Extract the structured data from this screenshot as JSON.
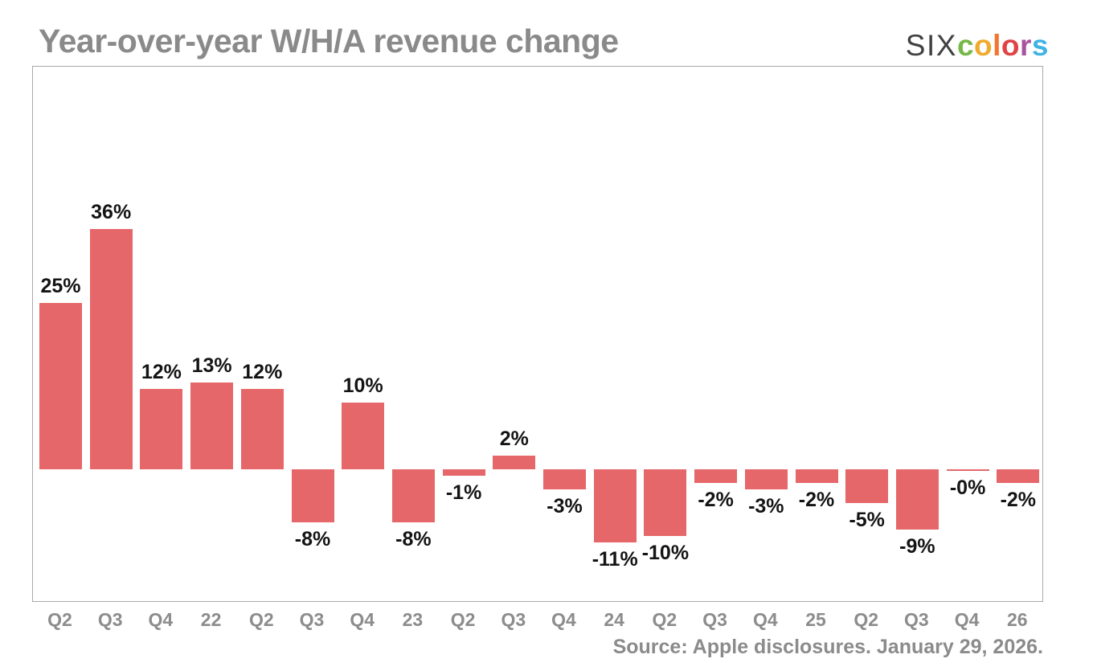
{
  "header": {
    "title": "Year-over-year W/H/A revenue change",
    "logo": {
      "prefix": "SIX",
      "word": [
        {
          "char": "c",
          "color": "#76b847"
        },
        {
          "char": "o",
          "color": "#f0ab2f"
        },
        {
          "char": "l",
          "color": "#f2772e"
        },
        {
          "char": "o",
          "color": "#e04345"
        },
        {
          "char": "r",
          "color": "#a8539e"
        },
        {
          "char": "s",
          "color": "#3eb3e4"
        }
      ]
    }
  },
  "chart_data": {
    "type": "bar",
    "title": "Year-over-year W/H/A revenue change",
    "categories": [
      "Q2",
      "Q3",
      "Q4",
      "22",
      "Q2",
      "Q3",
      "Q4",
      "23",
      "Q2",
      "Q3",
      "Q4",
      "24",
      "Q2",
      "Q3",
      "Q4",
      "25",
      "Q2",
      "Q3",
      "Q4",
      "26"
    ],
    "values": [
      25,
      36,
      12,
      13,
      12,
      -8,
      10,
      -8,
      -1,
      2,
      -3,
      -11,
      -10,
      -2,
      -3,
      -2,
      -5,
      -9,
      -0.2,
      -2
    ],
    "value_labels": [
      "25%",
      "36%",
      "12%",
      "13%",
      "12%",
      "-8%",
      "10%",
      "-8%",
      "-1%",
      "2%",
      "-3%",
      "-11%",
      "-10%",
      "-2%",
      "-3%",
      "-2%",
      "-5%",
      "-9%",
      "-0%",
      "-2%"
    ],
    "bar_color": "#e66769",
    "ylim": [
      -20,
      60
    ],
    "xlabel": "",
    "ylabel": "",
    "grid": false,
    "legend": false
  },
  "footer": {
    "source": "Source: Apple disclosures. January 29, 2026."
  }
}
